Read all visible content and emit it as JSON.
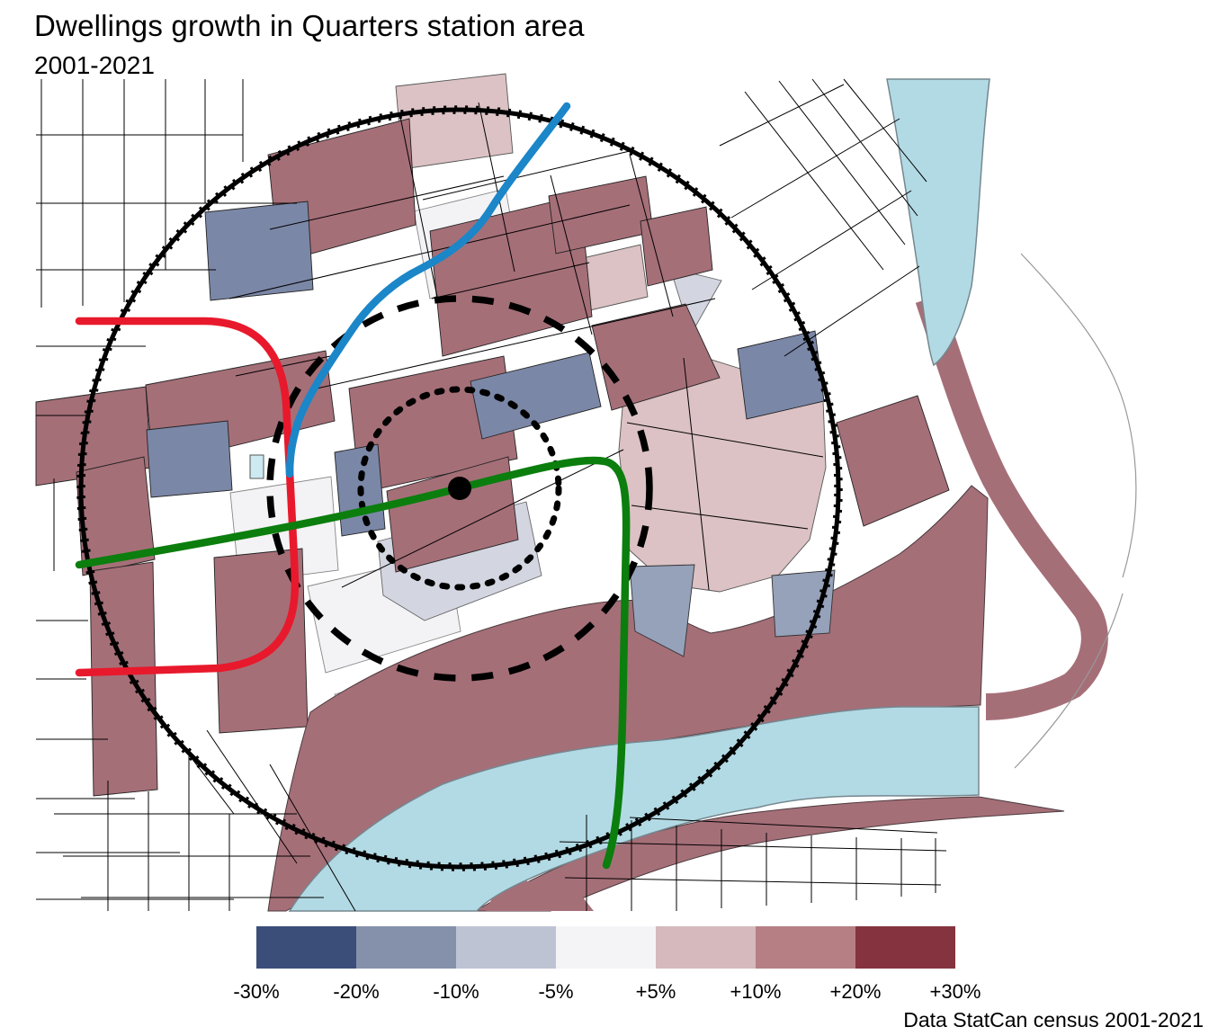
{
  "header": {
    "title": "Dwellings growth in Quarters station area",
    "subtitle": "2001-2021"
  },
  "footer": {
    "attribution": "Data StatCan census 2001-2021"
  },
  "legend": {
    "labels": [
      "-30%",
      "-20%",
      "-10%",
      "-5%",
      "+5%",
      "+10%",
      "+20%",
      "+30%"
    ],
    "colors": [
      "#3a4e79",
      "#8590ab",
      "#bec3d4",
      "#f4f3f5",
      "#d5b9bd",
      "#b57f84",
      "#84333f"
    ]
  },
  "map": {
    "type": "choropleth",
    "station_marker_color": "#000000",
    "rings": {
      "outer": "solid",
      "middle": "dashed",
      "inner": "dotted"
    },
    "line_colors": {
      "red": "#e8192c",
      "blue": "#1b86c8",
      "green": "#0b7e0e"
    },
    "river_color": "#b2dae4",
    "river_outline": "#75878f",
    "block_palette": {
      "strong_decline": "#7b87a7",
      "mild_decline": "#d3d6e1",
      "stable": "#f3f2f4",
      "mild_growth": "#dcc2c4",
      "strong_growth": "#a56f78"
    }
  }
}
